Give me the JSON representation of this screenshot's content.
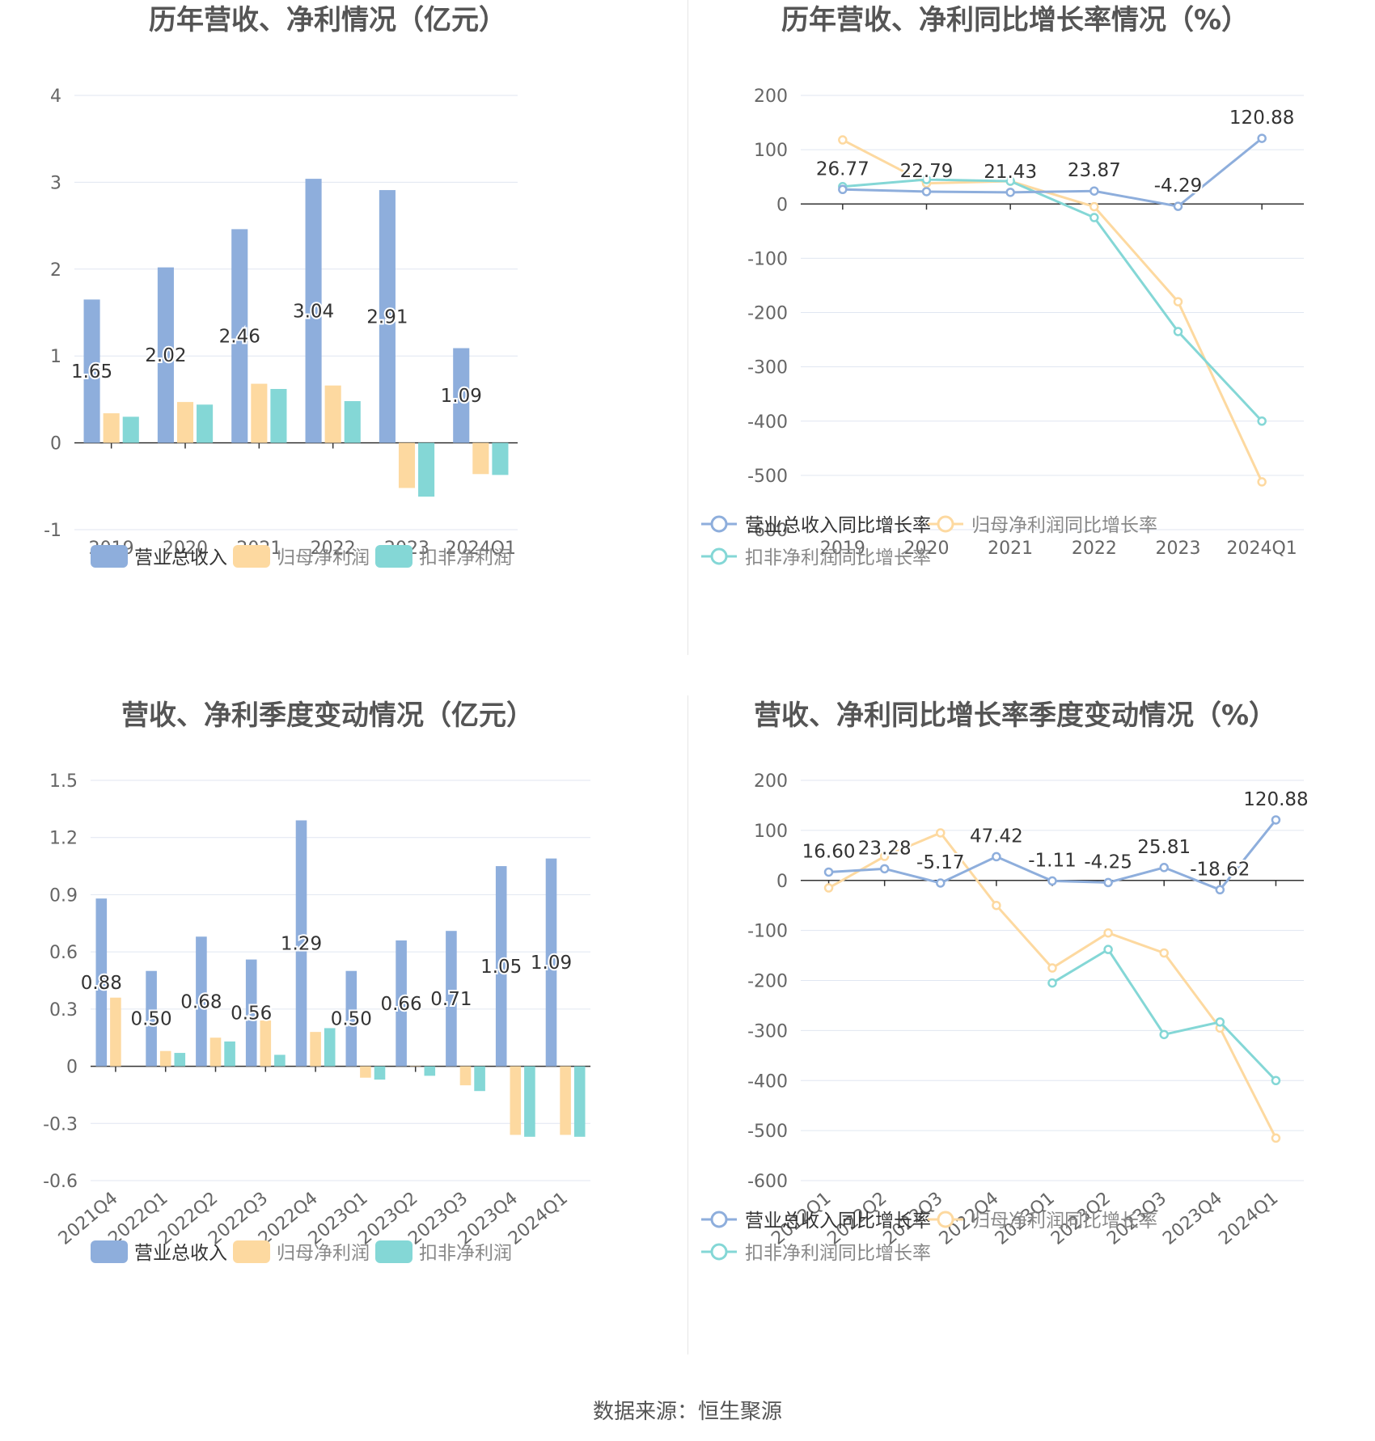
{
  "footer": {
    "source": "数据来源：恒生聚源"
  },
  "chart_data": [
    {
      "id": "annual-bar",
      "type": "bar",
      "title": "历年营收、净利情况（亿元）",
      "categories": [
        "2019",
        "2020",
        "2021",
        "2022",
        "2023",
        "2024Q1"
      ],
      "ylim": [
        -1,
        4
      ],
      "yticks": [
        "4",
        "3",
        "2",
        "1",
        "0",
        "-1"
      ],
      "grid": true,
      "legend_position": "bottom",
      "series": [
        {
          "name": "营业总收入",
          "color": "#8eaedc",
          "values": [
            1.65,
            2.02,
            2.46,
            3.04,
            2.91,
            1.09
          ],
          "labels": [
            "1.65",
            "2.02",
            "2.46",
            "3.04",
            "2.91",
            "1.09"
          ]
        },
        {
          "name": "归母净利润",
          "color": "#fdd9a0",
          "values": [
            0.34,
            0.47,
            0.68,
            0.66,
            -0.52,
            -0.36
          ]
        },
        {
          "name": "扣非净利润",
          "color": "#84d7d6",
          "values": [
            0.3,
            0.44,
            0.62,
            0.48,
            -0.62,
            -0.37
          ]
        }
      ]
    },
    {
      "id": "annual-line",
      "type": "line",
      "title": "历年营收、净利同比增长率情况（%）",
      "categories": [
        "2019",
        "2020",
        "2021",
        "2022",
        "2023",
        "2024Q1"
      ],
      "ylim": [
        -600,
        200
      ],
      "yticks": [
        "200",
        "100",
        "0",
        "-100",
        "-200",
        "-300",
        "-400",
        "-500",
        "-600"
      ],
      "grid": true,
      "legend_position": "bottom",
      "series": [
        {
          "name": "营业总收入同比增长率",
          "color": "#8eaedc",
          "values": [
            26.77,
            22.79,
            21.43,
            23.87,
            -4.29,
            120.88
          ],
          "labels": [
            "26.77",
            "22.79",
            "21.43",
            "23.87",
            "-4.29",
            "120.88"
          ]
        },
        {
          "name": "归母净利润同比增长率",
          "color": "#fdd9a0",
          "values": [
            118,
            38,
            42,
            -5,
            -180,
            -512
          ]
        },
        {
          "name": "扣非净利润同比增长率",
          "color": "#84d7d6",
          "values": [
            32,
            45,
            42,
            -25,
            -235,
            -400
          ]
        }
      ]
    },
    {
      "id": "quarter-bar",
      "type": "bar",
      "title": "营收、净利季度变动情况（亿元）",
      "categories": [
        "2021Q4",
        "2022Q1",
        "2022Q2",
        "2022Q3",
        "2022Q4",
        "2023Q1",
        "2023Q2",
        "2023Q3",
        "2023Q4",
        "2024Q1"
      ],
      "ylim": [
        -0.6,
        1.5
      ],
      "yticks": [
        "1.5",
        "1.2",
        "0.9",
        "0.6",
        "0.3",
        "0",
        "-0.3",
        "-0.6"
      ],
      "grid": true,
      "legend_position": "bottom",
      "series": [
        {
          "name": "营业总收入",
          "color": "#8eaedc",
          "values": [
            0.88,
            0.5,
            0.68,
            0.56,
            1.29,
            0.5,
            0.66,
            0.71,
            1.05,
            1.09
          ],
          "labels": [
            "0.88",
            "0.50",
            "0.68",
            "0.56",
            "1.29",
            "0.50",
            "0.66",
            "0.71",
            "1.05",
            "1.09"
          ]
        },
        {
          "name": "归母净利润",
          "color": "#fdd9a0",
          "values": [
            0.36,
            0.08,
            0.15,
            0.24,
            0.18,
            -0.06,
            0,
            -0.1,
            -0.36,
            -0.36
          ]
        },
        {
          "name": "扣非净利润",
          "color": "#84d7d6",
          "values": [
            null,
            0.07,
            0.13,
            0.06,
            0.2,
            -0.07,
            -0.05,
            -0.13,
            -0.37,
            -0.37
          ]
        }
      ]
    },
    {
      "id": "quarter-line",
      "type": "line",
      "title": "营收、净利同比增长率季度变动情况（%）",
      "categories": [
        "2022Q1",
        "2022Q2",
        "2022Q3",
        "2022Q4",
        "2023Q1",
        "2023Q2",
        "2023Q3",
        "2023Q4",
        "2024Q1"
      ],
      "ylim": [
        -600,
        200
      ],
      "yticks": [
        "200",
        "100",
        "0",
        "-100",
        "-200",
        "-300",
        "-400",
        "-500",
        "-600"
      ],
      "grid": true,
      "legend_position": "bottom",
      "series": [
        {
          "name": "营业总收入同比增长率",
          "color": "#8eaedc",
          "values": [
            16.6,
            23.28,
            -5.17,
            47.42,
            -1.11,
            -4.25,
            25.81,
            -18.62,
            120.88
          ],
          "labels": [
            "16.60",
            "23.28",
            "-5.17",
            "47.42",
            "-1.11",
            "-4.25",
            "25.81",
            "-18.62",
            "120.88"
          ]
        },
        {
          "name": "归母净利润同比增长率",
          "color": "#fdd9a0",
          "values": [
            -15,
            48,
            95,
            -50,
            -175,
            -105,
            -145,
            -295,
            -515
          ]
        },
        {
          "name": "扣非净利润同比增长率",
          "color": "#84d7d6",
          "values": [
            null,
            null,
            null,
            null,
            -205,
            -138,
            -308,
            -283,
            -400
          ]
        }
      ]
    }
  ]
}
